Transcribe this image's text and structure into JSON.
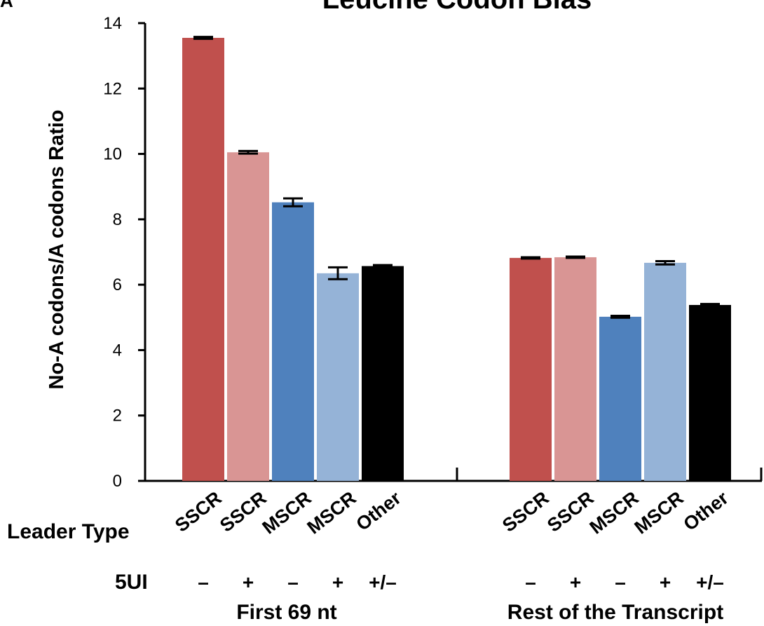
{
  "panel_letter": "A",
  "chart_data": {
    "type": "bar",
    "title": "Leucine Codon Bias",
    "ylabel": "No-A codons/A codons Ratio",
    "ylim": [
      0,
      14
    ],
    "yticks": [
      0,
      2,
      4,
      6,
      8,
      10,
      12,
      14
    ],
    "grid": false,
    "leader_type_label": "Leader Type",
    "fiveui_label": "5UI",
    "groups": [
      {
        "name": "First 69 nt",
        "bars": [
          {
            "leader": "SSCR",
            "fiveui": "–",
            "value": 13.55,
            "err": 0.03,
            "color": "#c0504d"
          },
          {
            "leader": "SSCR",
            "fiveui": "+",
            "value": 10.05,
            "err": 0.04,
            "color": "#d99594"
          },
          {
            "leader": "MSCR",
            "fiveui": "–",
            "value": 8.52,
            "err": 0.12,
            "color": "#4f81bd"
          },
          {
            "leader": "MSCR",
            "fiveui": "+",
            "value": 6.35,
            "err": 0.18,
            "color": "#95b3d7"
          },
          {
            "leader": "Other",
            "fiveui": "+/–",
            "value": 6.57,
            "err": 0.03,
            "color": "#000000"
          }
        ]
      },
      {
        "name": "Rest of the Transcript",
        "bars": [
          {
            "leader": "SSCR",
            "fiveui": "–",
            "value": 6.82,
            "err": 0.02,
            "color": "#c0504d"
          },
          {
            "leader": "SSCR",
            "fiveui": "+",
            "value": 6.84,
            "err": 0.02,
            "color": "#d99594"
          },
          {
            "leader": "MSCR",
            "fiveui": "–",
            "value": 5.02,
            "err": 0.03,
            "color": "#4f81bd"
          },
          {
            "leader": "MSCR",
            "fiveui": "+",
            "value": 6.67,
            "err": 0.05,
            "color": "#95b3d7"
          },
          {
            "leader": "Other",
            "fiveui": "+/–",
            "value": 5.38,
            "err": 0.03,
            "color": "#000000"
          }
        ]
      }
    ]
  }
}
